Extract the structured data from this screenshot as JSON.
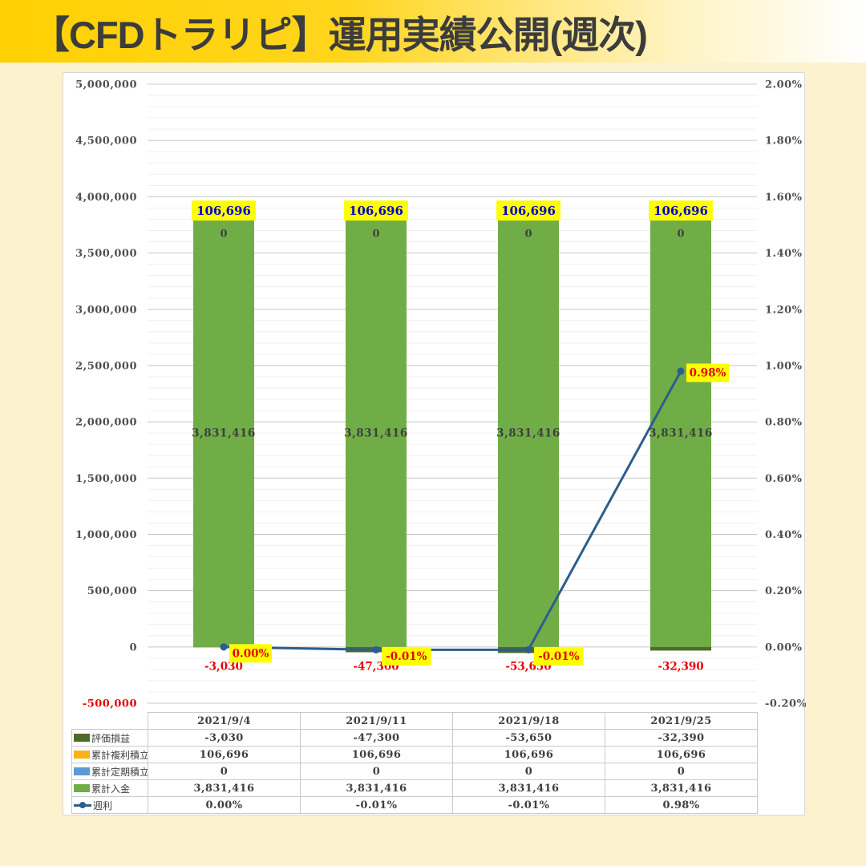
{
  "title": "【CFDトラリピ】運用実績公開(週次)",
  "colors": {
    "header_gradient_start": "#ffd103",
    "header_gradient_end": "#ffffff",
    "page_background": "#fcf2ce",
    "panel_background": "#ffffff",
    "grid_major": "#c8c8c8",
    "grid_minor": "#f0f0f0",
    "axis_text": "#4f4f4f",
    "negative_red": "#e60000",
    "label_yellow_bg": "#ffff00",
    "label_blue_text": "#0000cc",
    "bar_green": "#70ad47",
    "bar_dark_green": "#4d6b29",
    "bar_orange": "#fbb117",
    "swatch_blue": "#5b9bd5",
    "line_navy": "#2b5e8c"
  },
  "chart_data": {
    "type": "combo-stacked-bar-line",
    "title": "【CFDトラリピ】運用実績公開(週次)",
    "categories": [
      "2021/9/4",
      "2021/9/11",
      "2021/9/18",
      "2021/9/25"
    ],
    "series": [
      {
        "name": "評価損益",
        "type": "bar",
        "stack": 0,
        "color": "#4d6b29",
        "values": [
          -3030,
          -47300,
          -53650,
          -32390
        ],
        "label_style": "red-below"
      },
      {
        "name": "累計複利積立",
        "type": "bar",
        "stack": 3,
        "color": "#fbb117",
        "values": [
          106696,
          106696,
          106696,
          106696
        ],
        "label_style": "yellow-box-top"
      },
      {
        "name": "累計定期積立",
        "type": "bar",
        "stack": 2,
        "color": "#5b9bd5",
        "values": [
          0,
          0,
          0,
          0
        ],
        "label_style": "plain-under-top"
      },
      {
        "name": "累計入金",
        "type": "bar",
        "stack": 1,
        "color": "#70ad47",
        "values": [
          3831416,
          3831416,
          3831416,
          3831416
        ],
        "label_style": "inside"
      },
      {
        "name": "週利",
        "type": "line",
        "color": "#2b5e8c",
        "values_pct": [
          0.0,
          -0.01,
          -0.01,
          0.98
        ],
        "label_style": "yellow-box-point"
      }
    ],
    "left_axis": {
      "min": -500000,
      "max": 5000000,
      "major": 500000,
      "minor": 100000,
      "negative_label_color": "#e60000"
    },
    "right_axis": {
      "min": -0.2,
      "max": 2.0,
      "major": 0.2,
      "suffix": "%"
    },
    "grid": true,
    "vertical_gridlines": false,
    "legend_position": "table-left-column"
  },
  "table": {
    "corner": "",
    "columns": [
      "2021/9/4",
      "2021/9/11",
      "2021/9/18",
      "2021/9/25"
    ],
    "rows": [
      {
        "label": "評価損益",
        "swatch": "#4d6b29",
        "swatch_type": "rect",
        "values": [
          "-3,030",
          "-47,300",
          "-53,650",
          "-32,390"
        ]
      },
      {
        "label": "累計複利積立",
        "swatch": "#fbb117",
        "swatch_type": "rect",
        "values": [
          "106,696",
          "106,696",
          "106,696",
          "106,696"
        ]
      },
      {
        "label": "累計定期積立",
        "swatch": "#5b9bd5",
        "swatch_type": "rect",
        "values": [
          "0",
          "0",
          "0",
          "0"
        ]
      },
      {
        "label": "累計入金",
        "swatch": "#70ad47",
        "swatch_type": "rect",
        "values": [
          "3,831,416",
          "3,831,416",
          "3,831,416",
          "3,831,416"
        ]
      },
      {
        "label": "週利",
        "swatch": "#2b5e8c",
        "swatch_type": "line",
        "values": [
          "0.00%",
          "-0.01%",
          "-0.01%",
          "0.98%"
        ]
      }
    ]
  }
}
